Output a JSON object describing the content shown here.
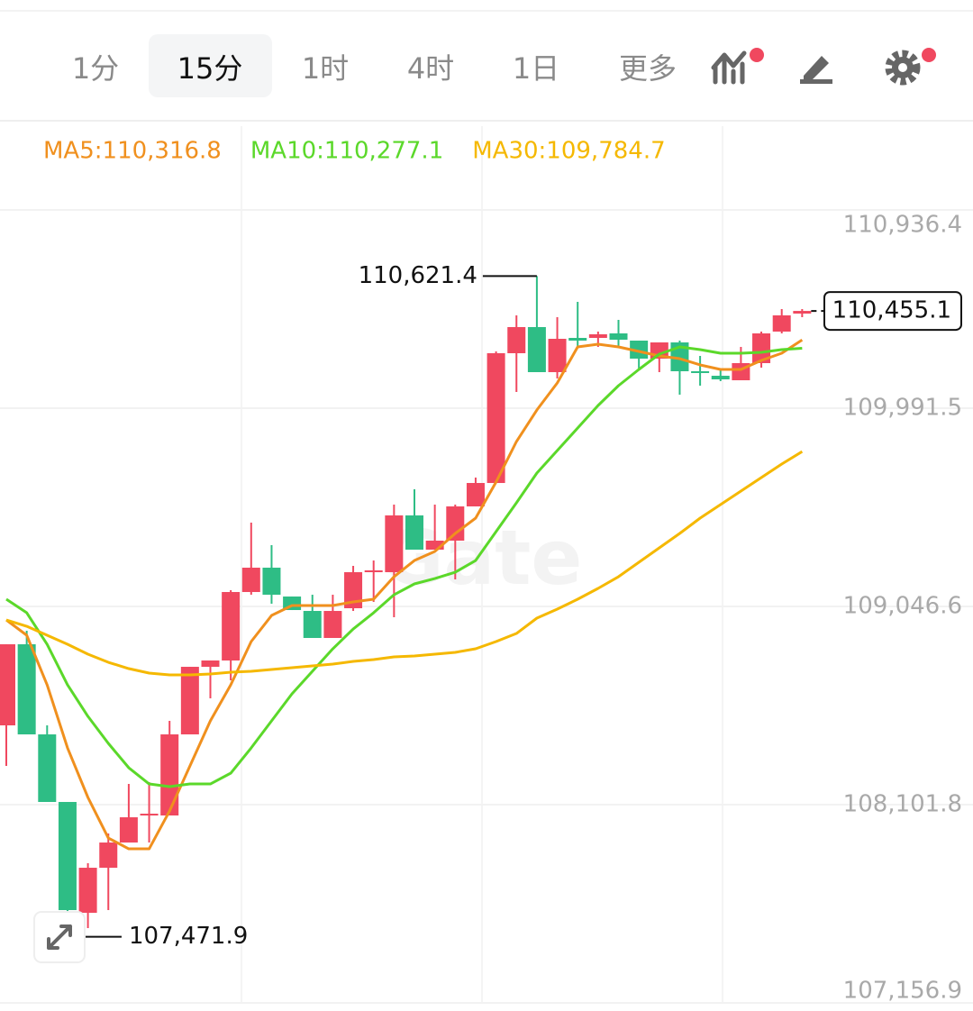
{
  "tabs": [
    {
      "label": "1分",
      "selected": false
    },
    {
      "label": "15分",
      "selected": true
    },
    {
      "label": "1时",
      "selected": false
    },
    {
      "label": "4时",
      "selected": false
    },
    {
      "label": "1日",
      "selected": false
    },
    {
      "label": "更多",
      "selected": false
    }
  ],
  "chart_data": {
    "type": "candlestick",
    "watermark": "Gate",
    "ylim": [
      107156.9,
      110936.4
    ],
    "yticks": [
      {
        "value": 110936.4,
        "label": "110,936.4"
      },
      {
        "value": 109991.5,
        "label": "109,991.5"
      },
      {
        "value": 109046.6,
        "label": "109,046.6"
      },
      {
        "value": 108101.8,
        "label": "108,101.8"
      },
      {
        "value": 107156.9,
        "label": "107,156.9"
      }
    ],
    "grid": true,
    "up_color": "#f0485f",
    "down_color": "#2ebd85",
    "open": [
      108479.7,
      108866.2,
      108436.7,
      108114.6,
      107586.3,
      107801.0,
      107921.3,
      108050.2,
      108050.2,
      108436.7,
      108758.8,
      108788.9,
      109115.3,
      109231.3,
      109093.8,
      109025.1,
      108896.3,
      109038.0,
      109209.8,
      109209.8,
      109480.4,
      109317.2,
      109360.1,
      109523.3,
      109635.0,
      110253.5,
      110378.1,
      110163.3,
      110326.5,
      110326.5,
      110348.0,
      110313.6,
      110227.7,
      110305.0,
      110167.6,
      110146.1,
      110124.6,
      110206.3,
      110356.6,
      110442.5
    ],
    "high": [
      108866.2,
      108930.6,
      108479.7,
      108114.6,
      107822.5,
      107964.3,
      108200.5,
      108209.1,
      108501.1,
      108758.8,
      108788.9,
      109123.9,
      109446.0,
      109338.7,
      109093.8,
      109102.4,
      109102.4,
      109239.9,
      109265.6,
      109531.9,
      109604.9,
      109531.9,
      109531.9,
      109660.8,
      110262.1,
      110433.9,
      110621.4,
      110425.3,
      110498.3,
      110356.6,
      110412.4,
      110313.6,
      110305.0,
      110313.6,
      110240.6,
      110176.2,
      110283.6,
      110356.6,
      110464.0,
      110464.0
    ],
    "low": [
      108286.4,
      108436.7,
      108114.6,
      107471.9,
      107513.3,
      107599.2,
      107921.3,
      107921.3,
      108050.2,
      108436.7,
      108608.5,
      108694.4,
      109102.4,
      109059.5,
      109029.4,
      108896.3,
      108896.3,
      109025.1,
      109068.1,
      108995.1,
      109317.2,
      109317.2,
      109175.4,
      109523.3,
      109635.0,
      110068.8,
      110163.3,
      110133.2,
      110283.6,
      110283.6,
      110283.6,
      110176.2,
      110163.3,
      110055.9,
      110098.9,
      110120.4,
      110124.6,
      110184.8,
      110348.0,
      110425.3
    ],
    "close": [
      108866.2,
      108436.7,
      108114.6,
      107599.2,
      107801.0,
      107921.3,
      108041.6,
      108058.7,
      108436.7,
      108758.8,
      108788.9,
      109115.3,
      109231.3,
      109102.4,
      109029.4,
      108896.3,
      109025.1,
      109209.8,
      109218.4,
      109480.4,
      109317.2,
      109360.1,
      109523.3,
      109635.0,
      110253.5,
      110378.1,
      110163.3,
      110322.2,
      110313.6,
      110343.7,
      110317.9,
      110227.7,
      110305.0,
      110167.6,
      110163.3,
      110128.9,
      110206.3,
      110348.0,
      110433.9,
      110455.1
    ],
    "series": [
      {
        "name": "MA5:110,316.8",
        "color": "#f0901e",
        "values": [
          108982.2,
          108909.2,
          108672.9,
          108372.3,
          108136.1,
          107942.8,
          107891.2,
          107891.2,
          108071.6,
          108286.4,
          108501.1,
          108672.9,
          108879.1,
          109003.6,
          109050.9,
          109050.9,
          109050.9,
          109068.1,
          109081.0,
          109188.3,
          109265.6,
          109308.6,
          109394.5,
          109467.5,
          109639.3,
          109832.6,
          109982.9,
          110111.8,
          110283.6,
          110296.4,
          110283.6,
          110262.1,
          110240.6,
          110227.7,
          110197.7,
          110176.2,
          110176.2,
          110219.1,
          110253.5,
          110316.8
        ]
      },
      {
        "name": "MA10:110,277.1",
        "color": "#5bd82a",
        "values": [
          109081.0,
          109016.5,
          108866.2,
          108672.9,
          108522.6,
          108393.8,
          108277.8,
          108200.5,
          108187.6,
          108200.5,
          108200.5,
          108252.0,
          108372.3,
          108501.1,
          108630.0,
          108737.4,
          108844.7,
          108939.2,
          109016.5,
          109102.4,
          109154.0,
          109179.7,
          109209.8,
          109265.6,
          109403.1,
          109540.5,
          109682.3,
          109789.6,
          109897.0,
          110004.4,
          110098.9,
          110176.2,
          110249.2,
          110283.6,
          110270.7,
          110253.5,
          110253.5,
          110257.8,
          110270.7,
          110277.1
        ]
      },
      {
        "name": "MA30:109,784.7",
        "color": "#f5b800",
        "values": [
          108982.2,
          108952.1,
          108909.2,
          108866.2,
          108819.0,
          108780.3,
          108750.2,
          108728.8,
          108720.2,
          108720.2,
          108724.5,
          108733.1,
          108737.4,
          108745.9,
          108754.5,
          108763.1,
          108771.7,
          108784.6,
          108793.2,
          108806.1,
          108810.4,
          108819.0,
          108827.6,
          108844.7,
          108879.1,
          108917.7,
          108990.8,
          109033.7,
          109081.0,
          109132.5,
          109188.3,
          109257.1,
          109325.8,
          109394.5,
          109467.5,
          109531.9,
          109596.4,
          109660.8,
          109725.2,
          109784.7
        ]
      }
    ],
    "annotations": [
      {
        "text": "110,621.4",
        "value": 110621.4
      },
      {
        "text": "107,471.9",
        "value": 107471.9
      }
    ],
    "last_price": {
      "text": "110,455.1",
      "value": 110455.1
    }
  }
}
